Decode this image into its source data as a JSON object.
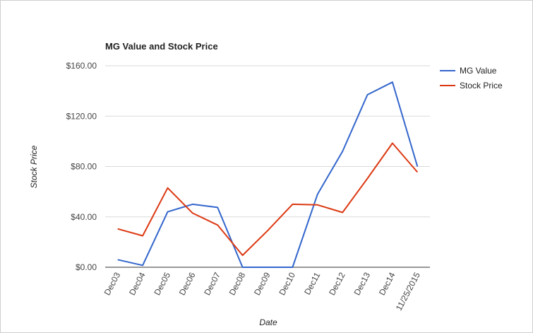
{
  "chart_data": {
    "type": "line",
    "title": "MG Value and Stock Price",
    "xlabel": "Date",
    "ylabel": "Stock Price",
    "categories": [
      "Dec03",
      "Dec04",
      "Dec05",
      "Dec06",
      "Dec07",
      "Dec08",
      "Dec09",
      "Dec10",
      "Dec11",
      "Dec12",
      "Dec13",
      "Dec14",
      "11/25/2015"
    ],
    "yticks": [
      "$0.00",
      "$40.00",
      "$80.00",
      "$120.00",
      "$160.00"
    ],
    "ytick_values": [
      0,
      40,
      80,
      120,
      160
    ],
    "ylim": [
      0,
      160
    ],
    "grid": true,
    "legend_position": "right",
    "series": [
      {
        "name": "MG Value",
        "color": "#3366cc",
        "values": [
          6,
          1.5,
          44,
          50,
          47.5,
          0,
          0,
          0,
          58,
          92,
          137,
          147,
          80
        ]
      },
      {
        "name": "Stock Price",
        "color": "#dc3912",
        "values": [
          30.5,
          25,
          63,
          43,
          33.5,
          9.5,
          29,
          50,
          49.5,
          43.5,
          70.5,
          98.5,
          75.5
        ]
      }
    ]
  }
}
